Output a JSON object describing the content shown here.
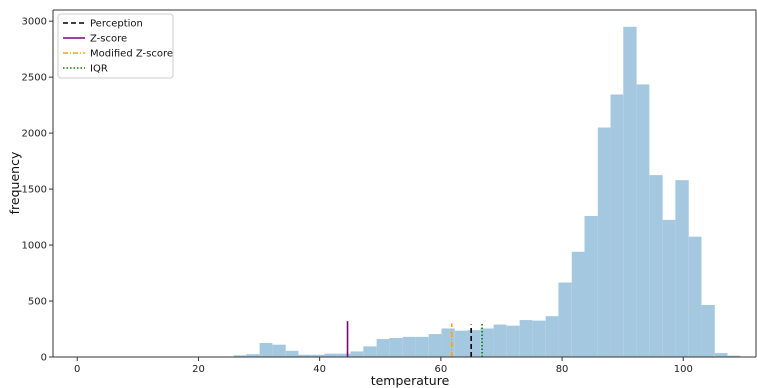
{
  "chart_data": {
    "type": "histogram",
    "xlabel": "temperature",
    "ylabel": "frequency",
    "xlim": [
      -4,
      112
    ],
    "ylim": [
      0,
      3100
    ],
    "xticks": [
      0,
      20,
      40,
      60,
      80,
      100
    ],
    "yticks": [
      0,
      500,
      1000,
      1500,
      2000,
      2500,
      3000
    ],
    "grid": false,
    "legend_position": "top-left",
    "bar_color": "#a5c8e1",
    "bins": [
      {
        "x0": 25.8,
        "x1": 27.9,
        "count": 15
      },
      {
        "x0": 27.9,
        "x1": 30.1,
        "count": 25
      },
      {
        "x0": 30.1,
        "x1": 32.2,
        "count": 125
      },
      {
        "x0": 32.2,
        "x1": 34.4,
        "count": 110
      },
      {
        "x0": 34.4,
        "x1": 36.5,
        "count": 55
      },
      {
        "x0": 36.5,
        "x1": 38.7,
        "count": 20
      },
      {
        "x0": 38.7,
        "x1": 40.8,
        "count": 20
      },
      {
        "x0": 40.8,
        "x1": 42.9,
        "count": 30
      },
      {
        "x0": 42.9,
        "x1": 45.1,
        "count": 30
      },
      {
        "x0": 45.1,
        "x1": 47.2,
        "count": 50
      },
      {
        "x0": 47.2,
        "x1": 49.4,
        "count": 95
      },
      {
        "x0": 49.4,
        "x1": 51.5,
        "count": 160
      },
      {
        "x0": 51.5,
        "x1": 53.7,
        "count": 170
      },
      {
        "x0": 53.7,
        "x1": 55.8,
        "count": 180
      },
      {
        "x0": 55.8,
        "x1": 58.0,
        "count": 180
      },
      {
        "x0": 58.0,
        "x1": 60.1,
        "count": 205
      },
      {
        "x0": 60.1,
        "x1": 62.3,
        "count": 255
      },
      {
        "x0": 62.3,
        "x1": 64.4,
        "count": 235
      },
      {
        "x0": 64.4,
        "x1": 66.5,
        "count": 240
      },
      {
        "x0": 66.5,
        "x1": 68.7,
        "count": 255
      },
      {
        "x0": 68.7,
        "x1": 70.8,
        "count": 290
      },
      {
        "x0": 70.8,
        "x1": 73.0,
        "count": 280
      },
      {
        "x0": 73.0,
        "x1": 75.1,
        "count": 330
      },
      {
        "x0": 75.1,
        "x1": 77.3,
        "count": 325
      },
      {
        "x0": 77.3,
        "x1": 79.4,
        "count": 365
      },
      {
        "x0": 79.4,
        "x1": 81.6,
        "count": 665
      },
      {
        "x0": 81.6,
        "x1": 83.7,
        "count": 940
      },
      {
        "x0": 83.7,
        "x1": 85.9,
        "count": 1260
      },
      {
        "x0": 85.9,
        "x1": 88.0,
        "count": 2050
      },
      {
        "x0": 88.0,
        "x1": 90.1,
        "count": 2345
      },
      {
        "x0": 90.1,
        "x1": 92.3,
        "count": 2950
      },
      {
        "x0": 92.3,
        "x1": 94.4,
        "count": 2435
      },
      {
        "x0": 94.4,
        "x1": 96.6,
        "count": 1625
      },
      {
        "x0": 96.6,
        "x1": 98.7,
        "count": 1225
      },
      {
        "x0": 98.7,
        "x1": 100.9,
        "count": 1580
      },
      {
        "x0": 100.9,
        "x1": 103.0,
        "count": 1075
      },
      {
        "x0": 103.0,
        "x1": 105.2,
        "count": 465
      },
      {
        "x0": 105.2,
        "x1": 107.3,
        "count": 35
      },
      {
        "x0": 107.3,
        "x1": 109.4,
        "count": 12
      }
    ],
    "threshold_lines": [
      {
        "name": "Perception",
        "x": 65.0,
        "height": 290,
        "color": "#000000",
        "linestyle": "dashed"
      },
      {
        "name": "Z-score",
        "x": 44.6,
        "height": 320,
        "color": "#800080",
        "linestyle": "solid"
      },
      {
        "name": "Modified Z-score",
        "x": 61.8,
        "height": 300,
        "color": "#ffa500",
        "linestyle": "dashdot"
      },
      {
        "name": "IQR",
        "x": 66.8,
        "height": 300,
        "color": "#008000",
        "linestyle": "dotted"
      }
    ],
    "legend": [
      {
        "label": "Perception",
        "color": "#000000",
        "linestyle": "dashed"
      },
      {
        "label": "Z-score",
        "color": "#800080",
        "linestyle": "solid"
      },
      {
        "label": "Modified Z-score",
        "color": "#ffa500",
        "linestyle": "dashdot"
      },
      {
        "label": "IQR",
        "color": "#008000",
        "linestyle": "dotted"
      }
    ]
  }
}
